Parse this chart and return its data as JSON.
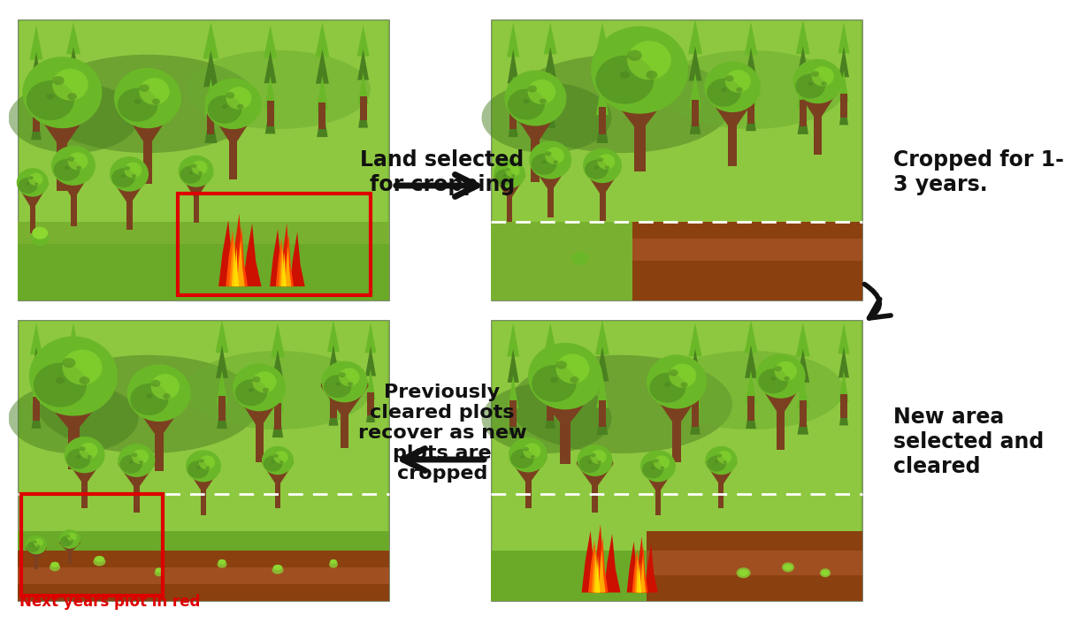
{
  "bg_color": "#ffffff",
  "text_color": "#111111",
  "label1": "Land selected\nfor cropping",
  "label2": "Cropped for 1-\n3 years.",
  "label3": "Previously\ncleared plots\nrecover as new\nplots are\ncropped",
  "label4": "New area\nselected and\ncleared",
  "bottom_label": "Next years plot in red",
  "forest_bg": "#7db83a",
  "forest_bg2": "#8ec840",
  "forest_dark": "#5a8a28",
  "forest_mid": "#6aab30",
  "forest_light": "#9ed845",
  "trunk_color": "#7B4020",
  "leaf_dark": "#4a8020",
  "leaf_mid": "#6ab828",
  "leaf_bright": "#8cd830",
  "leaf_yellow_green": "#a8d828",
  "ground_brown": "#8B4010",
  "ground_brown2": "#a05020",
  "ground_green": "#8ab830",
  "arrow_color": "#111111"
}
